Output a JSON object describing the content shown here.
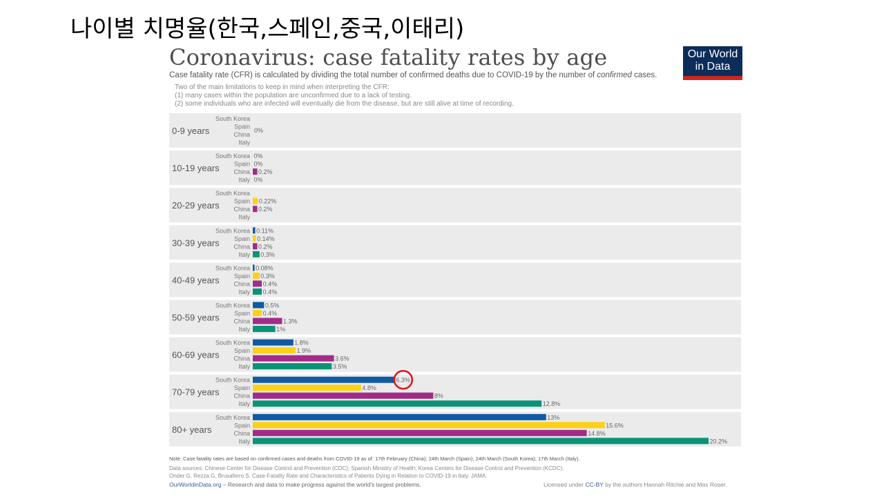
{
  "slide_title": "나이별 치명율(한국,스페인,중국,이태리)",
  "logo": {
    "line1": "Our World",
    "line2": "in Data"
  },
  "colors": {
    "South Korea": "#0f5aa3",
    "Spain": "#fcd116",
    "China": "#a22c89",
    "Italy": "#0b9378",
    "panel": "#ebebeb",
    "highlight_circle": "#e3101a"
  },
  "chart_data": {
    "type": "bar",
    "orientation": "horizontal",
    "title": "Coronavirus: case fatality rates by age",
    "subtitle_pre": "Case fatality rate (CFR) is calculated by dividing the total number of confirmed deaths due to COVID-19 by the number of ",
    "subtitle_em": "confirmed",
    "subtitle_post": " cases.",
    "notes": [
      "Two of the main limitations to keep in mind when interpreting the CFR:",
      "(1) many cases within the population are unconfirmed due to a lack of testing.",
      "(2) some individuals who are infected will eventually die from the disease, but are still alive at time of recording."
    ],
    "series_names": [
      "South Korea",
      "Spain",
      "China",
      "Italy"
    ],
    "unit": "%",
    "xlim": [
      0,
      20.2
    ],
    "groups": [
      {
        "label": "0-9 years",
        "values": [
          null,
          null,
          0,
          null
        ],
        "value_labels": [
          "",
          "",
          "0%",
          ""
        ],
        "shared_label": true
      },
      {
        "label": "10-19 years",
        "values": [
          0,
          0,
          0.2,
          0
        ],
        "value_labels": [
          "0%",
          "0%",
          "0.2%",
          "0%"
        ]
      },
      {
        "label": "20-29 years",
        "values": [
          null,
          0.22,
          0.2,
          null
        ],
        "value_labels": [
          "",
          "0.22%",
          "0.2%",
          ""
        ]
      },
      {
        "label": "30-39 years",
        "values": [
          0.11,
          0.14,
          0.2,
          0.3
        ],
        "value_labels": [
          "0.11%",
          "0.14%",
          "0.2%",
          "0.3%"
        ]
      },
      {
        "label": "40-49 years",
        "values": [
          0.08,
          0.3,
          0.4,
          0.4
        ],
        "value_labels": [
          "0.08%",
          "0.3%",
          "0.4%",
          "0.4%"
        ]
      },
      {
        "label": "50-59 years",
        "values": [
          0.5,
          0.4,
          1.3,
          1
        ],
        "value_labels": [
          "0.5%",
          "0.4%",
          "1.3%",
          "1%"
        ]
      },
      {
        "label": "60-69 years",
        "values": [
          1.8,
          1.9,
          3.6,
          3.5
        ],
        "value_labels": [
          "1.8%",
          "1.9%",
          "3.6%",
          "3.5%"
        ]
      },
      {
        "label": "70-79 years",
        "values": [
          6.3,
          4.8,
          8,
          12.8
        ],
        "value_labels": [
          "6.3%",
          "4.8%",
          "8%",
          "12.8%"
        ]
      },
      {
        "label": "80+ years",
        "values": [
          13,
          15.6,
          14.8,
          20.2
        ],
        "value_labels": [
          "13%",
          "15.6%",
          "14.8%",
          "20.2%"
        ]
      }
    ],
    "annotation": {
      "type": "circle",
      "group": "70-79 years",
      "series": "South Korea"
    }
  },
  "footer": {
    "note": "Note: Case fatality rates are based on confirmed cases and deaths from COVID-19 as of: 17th February (China); 24th March (Spain); 24th March (South Korea); 17th March (Italy).",
    "sources_1": "Data sources: Chinese Center for Disease Control and Prevention (CDC); Spanish Ministry of Health; Korea Centers for Disease Control and Prevention (KCDC).",
    "sources_2": "Onder G, Rezza G, Brusaferro S. Case-Fatality Rate and Characteristics of Patients Dying in Relation to COVID-19 in Italy. JAMA.",
    "site_link": "OurWorldinData.org",
    "site_text": " – Research and data to make progress against the world's largest problems.",
    "license_pre": "Licensed under ",
    "license_link": "CC-BY",
    "license_post": " by the authors Hannah Ritchie and Max Roser."
  }
}
